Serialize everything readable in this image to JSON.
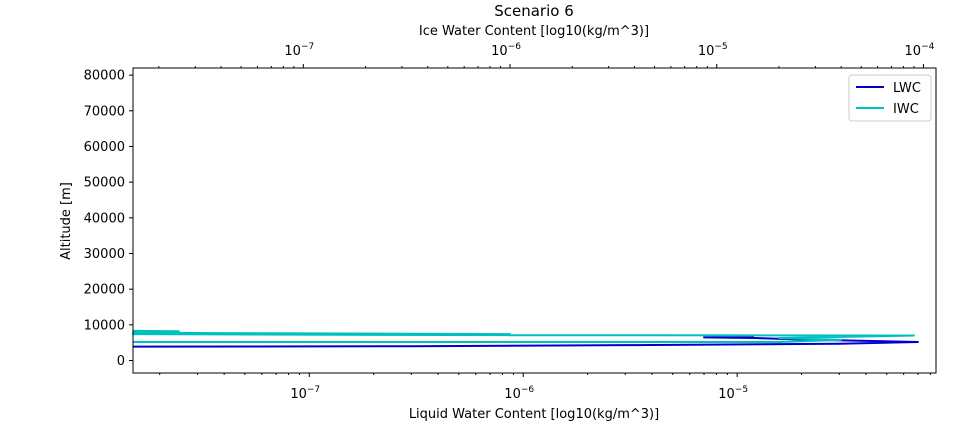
{
  "chart_data": {
    "type": "line",
    "title": "Scenario 6",
    "xlabel": "Liquid Water Content [log10(kg/m^3)]",
    "x2label": "Ice Water Content [log10(kg/m^3)]",
    "ylabel": "Altitude [m]",
    "xscale": "log",
    "x2scale": "log",
    "xlim": [
      1.5e-08,
      8.5e-05
    ],
    "x2lim": [
      1.5e-08,
      0.000115
    ],
    "ylim": [
      -3500,
      82000
    ],
    "yticks": [
      "0",
      "10000",
      "20000",
      "30000",
      "40000",
      "50000",
      "60000",
      "70000",
      "80000"
    ],
    "xticks": [
      {
        "base": "10",
        "exp": "−7"
      },
      {
        "base": "10",
        "exp": "−6"
      },
      {
        "base": "10",
        "exp": "−5"
      }
    ],
    "x2ticks": [
      {
        "base": "10",
        "exp": "−7"
      },
      {
        "base": "10",
        "exp": "−6"
      },
      {
        "base": "10",
        "exp": "−5"
      },
      {
        "base": "10",
        "exp": "−4"
      }
    ],
    "grid": false,
    "legend_position": "top-right",
    "series": [
      {
        "name": "LWC",
        "axis": "bottom",
        "color": "#0000cc",
        "points": [
          {
            "x": 1.5e-08,
            "y": 3900
          },
          {
            "x": 3e-07,
            "y": 4000
          },
          {
            "x": 3e-06,
            "y": 4300
          },
          {
            "x": 3e-05,
            "y": 4700
          },
          {
            "x": 7e-05,
            "y": 5200
          },
          {
            "x": 2e-05,
            "y": 5900
          },
          {
            "x": 1.2e-05,
            "y": 6300
          },
          {
            "x": 7e-06,
            "y": 6500
          },
          {
            "x": 1.2e-05,
            "y": 6500
          }
        ]
      },
      {
        "name": "IWC",
        "axis": "top",
        "color": "#00bfbf",
        "points": [
          {
            "x": 1.5e-08,
            "y": 5200
          },
          {
            "x": 1e-06,
            "y": 5200
          },
          {
            "x": 2e-05,
            "y": 5200
          },
          {
            "x": 4e-05,
            "y": 5800
          },
          {
            "x": 2e-05,
            "y": 6300
          },
          {
            "x": 9e-05,
            "y": 7000
          },
          {
            "x": 1e-06,
            "y": 7100
          },
          {
            "x": 1.5e-08,
            "y": 7400
          },
          {
            "x": 1e-06,
            "y": 7400
          },
          {
            "x": 1e-07,
            "y": 7600
          },
          {
            "x": 1.5e-08,
            "y": 7800
          },
          {
            "x": 2.5e-08,
            "y": 8200
          },
          {
            "x": 1.5e-08,
            "y": 8300
          }
        ]
      }
    ]
  }
}
